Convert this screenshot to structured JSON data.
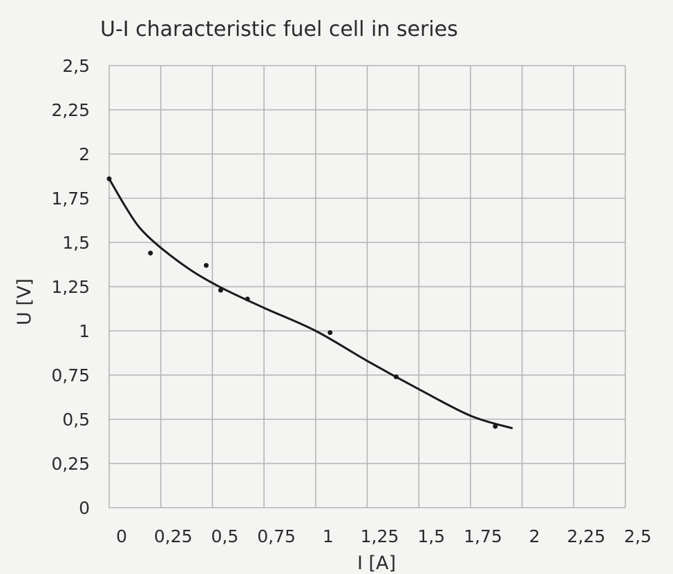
{
  "chart_data": {
    "type": "scatter",
    "title": "U-I characteristic fuel cell in series",
    "xlabel": "I [A]",
    "ylabel": "U [V]",
    "xlim": [
      0,
      2.5
    ],
    "ylim": [
      0,
      2.5
    ],
    "x_ticks": [
      0,
      0.25,
      0.5,
      0.75,
      1,
      1.25,
      1.5,
      1.75,
      2,
      2.25,
      2.5
    ],
    "x_tick_labels": [
      "0",
      "0,25",
      "0,5",
      "0,75",
      "1",
      "1,25",
      "1,5",
      "1,75",
      "2",
      "2,25",
      "2,5"
    ],
    "y_ticks": [
      0,
      0.25,
      0.5,
      0.75,
      1,
      1.25,
      1.5,
      1.75,
      2,
      2.25,
      2.5
    ],
    "y_tick_labels": [
      "0",
      "0,25",
      "0,5",
      "0,75",
      "1",
      "1,25",
      "1,5",
      "1,75",
      "2",
      "2,25",
      "2,5"
    ],
    "grid": true,
    "series": [
      {
        "points": [
          {
            "x": 0.0,
            "y": 1.86
          },
          {
            "x": 0.2,
            "y": 1.44
          },
          {
            "x": 0.47,
            "y": 1.37
          },
          {
            "x": 0.54,
            "y": 1.23
          },
          {
            "x": 0.67,
            "y": 1.18
          },
          {
            "x": 1.07,
            "y": 0.99
          },
          {
            "x": 1.39,
            "y": 0.74
          },
          {
            "x": 1.87,
            "y": 0.46
          }
        ]
      }
    ],
    "trend_line": {
      "x": [
        0.0,
        0.08,
        0.15,
        0.25,
        0.4,
        0.55,
        0.75,
        1.0,
        1.25,
        1.5,
        1.75,
        1.95
      ],
      "y": [
        1.86,
        1.7,
        1.58,
        1.47,
        1.34,
        1.24,
        1.13,
        1.0,
        0.83,
        0.67,
        0.52,
        0.45
      ]
    }
  }
}
